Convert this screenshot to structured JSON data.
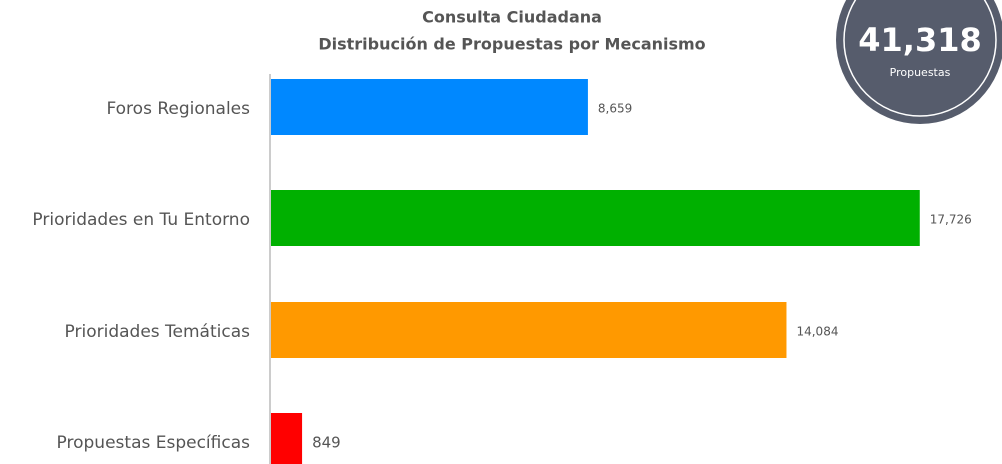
{
  "chart_data": {
    "type": "bar",
    "orientation": "horizontal",
    "title": "Consulta Ciudadana",
    "subtitle": "Distribución de Propuestas por Mecanismo",
    "categories": [
      "Foros Regionales",
      "Prioridades en Tu Entorno",
      "Prioridades Temáticas",
      "Propuestas Específicas"
    ],
    "values": [
      8659,
      17726,
      14084,
      849
    ],
    "value_labels": [
      "8,659",
      "17,726",
      "14,084",
      "849"
    ],
    "colors": [
      "#0088ff",
      "#00b000",
      "#ff9900",
      "#ff0000"
    ],
    "badge": {
      "total": "41,318",
      "caption": "Propuestas"
    }
  }
}
